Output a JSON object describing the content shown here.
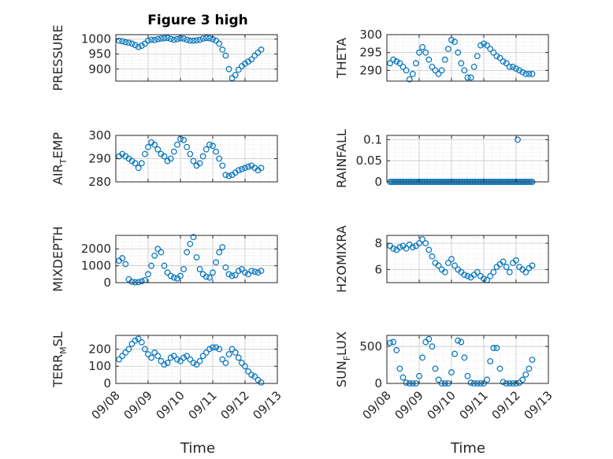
{
  "figure": {
    "title": "Figure 3 high",
    "xlabel": "Time",
    "x_tick_labels": [
      "09/08",
      "09/09",
      "09/10",
      "09/11",
      "09/12",
      "09/13"
    ]
  },
  "colors": {
    "marker": "#0072BD",
    "grid": "#d9d9d9",
    "axis": "#262626"
  },
  "chart_data": [
    {
      "type": "scatter",
      "panel": "left-1",
      "ylabel_parts": [
        "PRESSURE"
      ],
      "ylim": [
        860,
        1015
      ],
      "yticks": [
        900,
        950,
        1000
      ],
      "xlim": [
        0,
        5
      ],
      "grid": true,
      "x": [
        0.1,
        0.2,
        0.3,
        0.4,
        0.5,
        0.6,
        0.7,
        0.8,
        0.9,
        1.0,
        1.1,
        1.2,
        1.3,
        1.4,
        1.5,
        1.6,
        1.7,
        1.8,
        1.9,
        2.0,
        2.1,
        2.2,
        2.3,
        2.4,
        2.5,
        2.6,
        2.7,
        2.8,
        2.9,
        3.0,
        3.1,
        3.2,
        3.3,
        3.4,
        3.5,
        3.6,
        3.7,
        3.8,
        3.9,
        4.0,
        4.1,
        4.2,
        4.3,
        4.4,
        4.5
      ],
      "y": [
        995,
        993,
        990,
        988,
        985,
        980,
        974,
        978,
        985,
        995,
        998,
        997,
        1000,
        1002,
        1003,
        1004,
        1001,
        998,
        1000,
        1003,
        1002,
        998,
        995,
        995,
        996,
        998,
        1002,
        1004,
        1003,
        1000,
        995,
        985,
        965,
        945,
        900,
        870,
        880,
        898,
        910,
        918,
        925,
        932,
        945,
        955,
        965
      ]
    },
    {
      "type": "scatter",
      "panel": "right-1",
      "ylabel_parts": [
        "THETA"
      ],
      "ylim": [
        287,
        300
      ],
      "yticks": [
        290,
        295,
        300
      ],
      "xlim": [
        0,
        5
      ],
      "grid": true,
      "x": [
        0.1,
        0.2,
        0.3,
        0.4,
        0.5,
        0.6,
        0.7,
        0.8,
        0.9,
        1.0,
        1.1,
        1.2,
        1.3,
        1.4,
        1.5,
        1.6,
        1.7,
        1.8,
        1.9,
        2.0,
        2.1,
        2.2,
        2.3,
        2.4,
        2.5,
        2.6,
        2.7,
        2.8,
        2.9,
        3.0,
        3.1,
        3.2,
        3.3,
        3.4,
        3.5,
        3.6,
        3.7,
        3.8,
        3.9,
        4.0,
        4.1,
        4.2,
        4.3,
        4.4,
        4.5
      ],
      "y": [
        292,
        293,
        292.5,
        292,
        291,
        290,
        287.5,
        289,
        292,
        295,
        296.5,
        295,
        293,
        291,
        290,
        289,
        290,
        293,
        296,
        298.5,
        298,
        295,
        292,
        290,
        288,
        288,
        291,
        294,
        297,
        297.5,
        297,
        296,
        295,
        294,
        293.5,
        292.5,
        292,
        291,
        291,
        290.5,
        290,
        289.5,
        289,
        289,
        289
      ]
    },
    {
      "type": "scatter",
      "panel": "left-2",
      "ylabel_parts": [
        "AIR",
        "T",
        "EMP"
      ],
      "ylim": [
        280,
        300
      ],
      "yticks": [
        280,
        290,
        300
      ],
      "xlim": [
        0,
        5
      ],
      "grid": true,
      "x": [
        0.1,
        0.2,
        0.3,
        0.4,
        0.5,
        0.6,
        0.7,
        0.8,
        0.9,
        1.0,
        1.1,
        1.2,
        1.3,
        1.4,
        1.5,
        1.6,
        1.7,
        1.8,
        1.9,
        2.0,
        2.1,
        2.2,
        2.3,
        2.4,
        2.5,
        2.6,
        2.7,
        2.8,
        2.9,
        3.0,
        3.1,
        3.2,
        3.3,
        3.4,
        3.5,
        3.6,
        3.7,
        3.8,
        3.9,
        4.0,
        4.1,
        4.2,
        4.3,
        4.4,
        4.5
      ],
      "y": [
        291,
        292,
        291,
        290,
        289,
        288,
        286,
        288,
        292,
        295,
        297,
        296,
        294,
        292,
        291,
        289,
        290,
        293,
        296,
        298.5,
        298,
        295,
        292,
        289,
        287,
        288,
        291,
        294,
        296,
        295.5,
        293,
        290,
        287,
        283,
        282.5,
        283,
        284,
        285,
        285.5,
        286,
        286.5,
        287,
        286,
        285,
        286
      ]
    },
    {
      "type": "scatter",
      "panel": "right-2",
      "ylabel_parts": [
        "RAINFALL"
      ],
      "ylim": [
        0,
        0.11
      ],
      "yticks": [
        0,
        0.05,
        0.1
      ],
      "ytick_labels": [
        "0",
        "0.05",
        "0.1"
      ],
      "xlim": [
        0,
        5
      ],
      "grid": true,
      "x_start": 0.1,
      "x_end": 4.5,
      "baseline_value": 0,
      "baseline_count": 90,
      "x": [
        4.05
      ],
      "y": [
        0.1
      ]
    },
    {
      "type": "scatter",
      "panel": "left-3",
      "ylabel_parts": [
        "MIXDEPTH"
      ],
      "ylim": [
        0,
        2800
      ],
      "yticks": [
        0,
        1000,
        2000
      ],
      "xlim": [
        0,
        5
      ],
      "grid": true,
      "x": [
        0.1,
        0.2,
        0.3,
        0.4,
        0.5,
        0.6,
        0.7,
        0.8,
        0.9,
        1.0,
        1.1,
        1.2,
        1.3,
        1.4,
        1.5,
        1.6,
        1.7,
        1.8,
        1.9,
        2.0,
        2.1,
        2.2,
        2.3,
        2.4,
        2.5,
        2.6,
        2.7,
        2.8,
        2.9,
        3.0,
        3.1,
        3.2,
        3.3,
        3.4,
        3.5,
        3.6,
        3.7,
        3.8,
        3.9,
        4.0,
        4.1,
        4.2,
        4.3,
        4.4,
        4.5
      ],
      "y": [
        1300,
        1450,
        1100,
        200,
        50,
        20,
        30,
        80,
        150,
        500,
        1000,
        1600,
        2000,
        1800,
        1000,
        600,
        400,
        300,
        250,
        400,
        800,
        1800,
        2300,
        2700,
        1500,
        800,
        500,
        350,
        300,
        600,
        1200,
        1800,
        2100,
        900,
        500,
        400,
        450,
        700,
        800,
        600,
        500,
        700,
        650,
        600,
        700
      ]
    },
    {
      "type": "scatter",
      "panel": "right-3",
      "ylabel_parts": [
        "H2OMIXRA"
      ],
      "ylim": [
        5,
        8.6
      ],
      "yticks": [
        6,
        8
      ],
      "xlim": [
        0,
        5
      ],
      "grid": true,
      "x": [
        0.1,
        0.2,
        0.3,
        0.4,
        0.5,
        0.6,
        0.7,
        0.8,
        0.9,
        1.0,
        1.1,
        1.2,
        1.3,
        1.4,
        1.5,
        1.6,
        1.7,
        1.8,
        1.9,
        2.0,
        2.1,
        2.2,
        2.3,
        2.4,
        2.5,
        2.6,
        2.7,
        2.8,
        2.9,
        3.0,
        3.1,
        3.2,
        3.3,
        3.4,
        3.5,
        3.6,
        3.7,
        3.8,
        3.9,
        4.0,
        4.1,
        4.2,
        4.3,
        4.4,
        4.5
      ],
      "y": [
        7.8,
        7.6,
        7.5,
        7.7,
        7.8,
        7.6,
        7.9,
        7.7,
        7.8,
        8.0,
        8.3,
        8.0,
        7.5,
        7.0,
        6.5,
        6.3,
        6.0,
        5.8,
        6.5,
        6.8,
        6.3,
        6.0,
        5.8,
        5.6,
        5.5,
        5.4,
        5.6,
        5.8,
        5.5,
        5.3,
        5.2,
        5.5,
        5.8,
        6.2,
        6.4,
        6.6,
        6.2,
        5.8,
        6.5,
        6.7,
        6.2,
        6.0,
        5.8,
        6.1,
        6.3
      ]
    },
    {
      "type": "scatter",
      "panel": "left-4",
      "ylabel_parts": [
        "TERR",
        "M",
        "SL"
      ],
      "ylim": [
        0,
        280
      ],
      "yticks": [
        0,
        100,
        200
      ],
      "xlim": [
        0,
        5
      ],
      "grid": true,
      "x": [
        0.1,
        0.2,
        0.3,
        0.4,
        0.5,
        0.6,
        0.7,
        0.8,
        0.9,
        1.0,
        1.1,
        1.2,
        1.3,
        1.4,
        1.5,
        1.6,
        1.7,
        1.8,
        1.9,
        2.0,
        2.1,
        2.2,
        2.3,
        2.4,
        2.5,
        2.6,
        2.7,
        2.8,
        2.9,
        3.0,
        3.1,
        3.2,
        3.3,
        3.4,
        3.5,
        3.6,
        3.7,
        3.8,
        3.9,
        4.0,
        4.1,
        4.2,
        4.3,
        4.4,
        4.5
      ],
      "y": [
        140,
        160,
        180,
        200,
        230,
        250,
        260,
        240,
        200,
        170,
        150,
        180,
        160,
        130,
        110,
        120,
        150,
        160,
        140,
        130,
        150,
        160,
        140,
        120,
        110,
        130,
        160,
        180,
        200,
        210,
        210,
        200,
        140,
        120,
        170,
        200,
        180,
        150,
        120,
        100,
        70,
        50,
        40,
        20,
        5
      ]
    },
    {
      "type": "scatter",
      "panel": "right-4",
      "ylabel_parts": [
        "SUN",
        "F",
        "LUX"
      ],
      "ylim": [
        0,
        650
      ],
      "yticks": [
        0,
        500
      ],
      "xlim": [
        0,
        5
      ],
      "grid": true,
      "x": [
        0.1,
        0.2,
        0.3,
        0.4,
        0.5,
        0.6,
        0.7,
        0.8,
        0.9,
        1.0,
        1.1,
        1.2,
        1.3,
        1.4,
        1.5,
        1.6,
        1.7,
        1.8,
        1.9,
        2.0,
        2.1,
        2.2,
        2.3,
        2.4,
        2.5,
        2.6,
        2.7,
        2.8,
        2.9,
        3.0,
        3.1,
        3.2,
        3.3,
        3.4,
        3.5,
        3.6,
        3.7,
        3.8,
        3.9,
        4.0,
        4.1,
        4.2,
        4.3,
        4.4,
        4.5
      ],
      "y": [
        550,
        560,
        450,
        200,
        80,
        10,
        0,
        0,
        0,
        100,
        350,
        560,
        600,
        500,
        200,
        50,
        0,
        0,
        0,
        150,
        400,
        580,
        560,
        350,
        100,
        10,
        0,
        0,
        0,
        0,
        50,
        300,
        480,
        480,
        200,
        20,
        0,
        0,
        0,
        0,
        10,
        50,
        120,
        200,
        320
      ]
    }
  ]
}
